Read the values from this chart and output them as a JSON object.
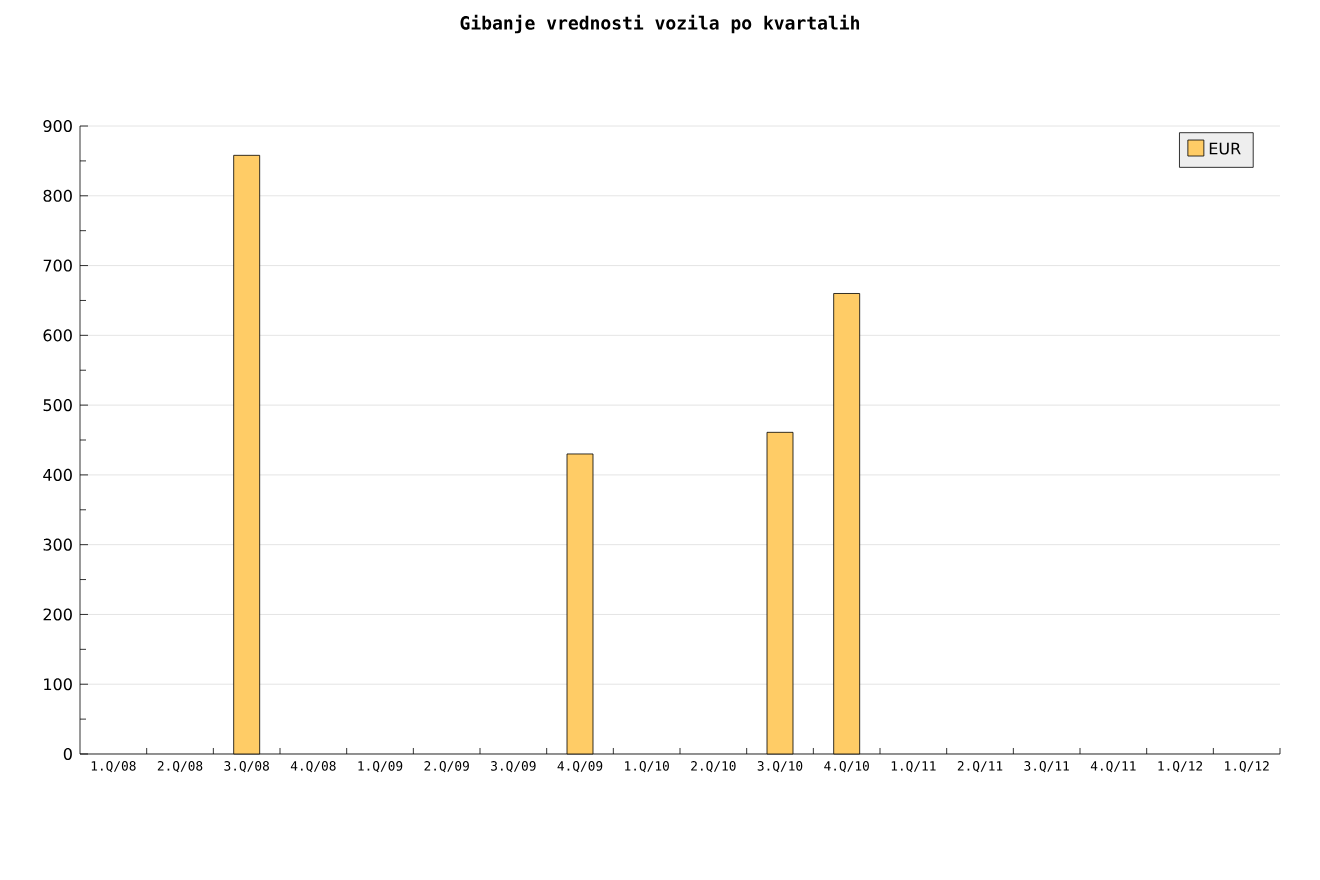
{
  "chart_data": {
    "type": "bar",
    "title": "Gibanje vrednosti vozila po kvartalih",
    "categories": [
      "1.Q/08",
      "2.Q/08",
      "3.Q/08",
      "4.Q/08",
      "1.Q/09",
      "2.Q/09",
      "3.Q/09",
      "4.Q/09",
      "1.Q/10",
      "2.Q/10",
      "3.Q/10",
      "4.Q/10",
      "1.Q/11",
      "2.Q/11",
      "3.Q/11",
      "4.Q/11",
      "1.Q/12",
      "1.Q/12"
    ],
    "series": [
      {
        "name": "EUR",
        "color": "#ffcc66",
        "values": [
          null,
          null,
          858,
          null,
          null,
          null,
          null,
          430,
          null,
          null,
          461,
          660,
          null,
          null,
          null,
          null,
          null,
          null
        ]
      }
    ],
    "ylim": [
      0,
      900
    ],
    "yticks": [
      0,
      100,
      200,
      300,
      400,
      500,
      600,
      700,
      800,
      900
    ],
    "grid": "y",
    "legend": "top right"
  }
}
